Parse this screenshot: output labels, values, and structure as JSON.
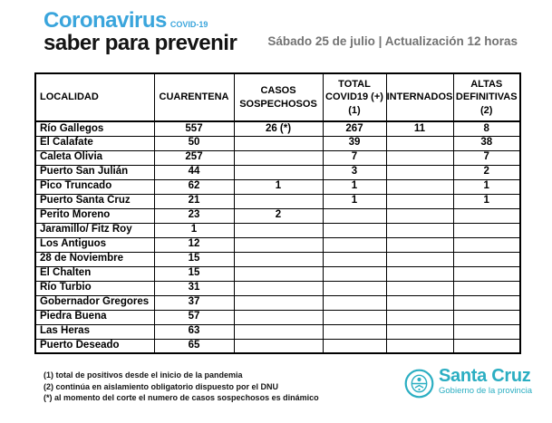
{
  "header": {
    "brand_title": "Coronavirus",
    "brand_tag": "COVID-19",
    "brand_subtitle": "saber para prevenir",
    "date_info": "Sábado 25 de julio | Actualización 12 horas"
  },
  "table": {
    "columns": [
      "LOCALIDAD",
      "CUARENTENA",
      "CASOS\nSOSPECHOSOS",
      "TOTAL\nCOVID19 (+)\n(1)",
      "INTERNADOS",
      "ALTAS\nDEFINITIVAS\n(2)"
    ],
    "rows": [
      [
        "Río Gallegos",
        "557",
        "26 (*)",
        "267",
        "11",
        "8"
      ],
      [
        "El Calafate",
        "50",
        "",
        "39",
        "",
        "38"
      ],
      [
        "Caleta Olivia",
        "257",
        "",
        "7",
        "",
        "7"
      ],
      [
        "Puerto San Julián",
        "44",
        "",
        "3",
        "",
        "2"
      ],
      [
        "Pico Truncado",
        "62",
        "1",
        "1",
        "",
        "1"
      ],
      [
        "Puerto Santa Cruz",
        "21",
        "",
        "1",
        "",
        "1"
      ],
      [
        "Perito Moreno",
        "23",
        "2",
        "",
        "",
        ""
      ],
      [
        "Jaramillo/ Fitz Roy",
        "1",
        "",
        "",
        "",
        ""
      ],
      [
        "Los Antiguos",
        "12",
        "",
        "",
        "",
        ""
      ],
      [
        "28 de Noviembre",
        "15",
        "",
        "",
        "",
        ""
      ],
      [
        "El Chalten",
        "15",
        "",
        "",
        "",
        ""
      ],
      [
        "Río Turbio",
        "31",
        "",
        "",
        "",
        ""
      ],
      [
        "Gobernador Gregores",
        "37",
        "",
        "",
        "",
        ""
      ],
      [
        "Piedra Buena",
        "57",
        "",
        "",
        "",
        ""
      ],
      [
        "Las Heras",
        "63",
        "",
        "",
        "",
        ""
      ],
      [
        "Puerto Deseado",
        "65",
        "",
        "",
        "",
        ""
      ]
    ]
  },
  "footnotes": [
    "(1) total de positivos desde el inicio de la pandemia",
    "(2) continúa en aislamiento obligatorio dispuesto por el DNU",
    "(*) al momento del corte el numero de casos sospechosos  es dinámico"
  ],
  "logo": {
    "name": "Santa Cruz",
    "subtitle": "Gobierno de la provincia"
  },
  "colors": {
    "brand_blue": "#3AA5DC",
    "logo_teal": "#2BAEC2",
    "date_gray": "#737373",
    "table_border": "#000000"
  }
}
